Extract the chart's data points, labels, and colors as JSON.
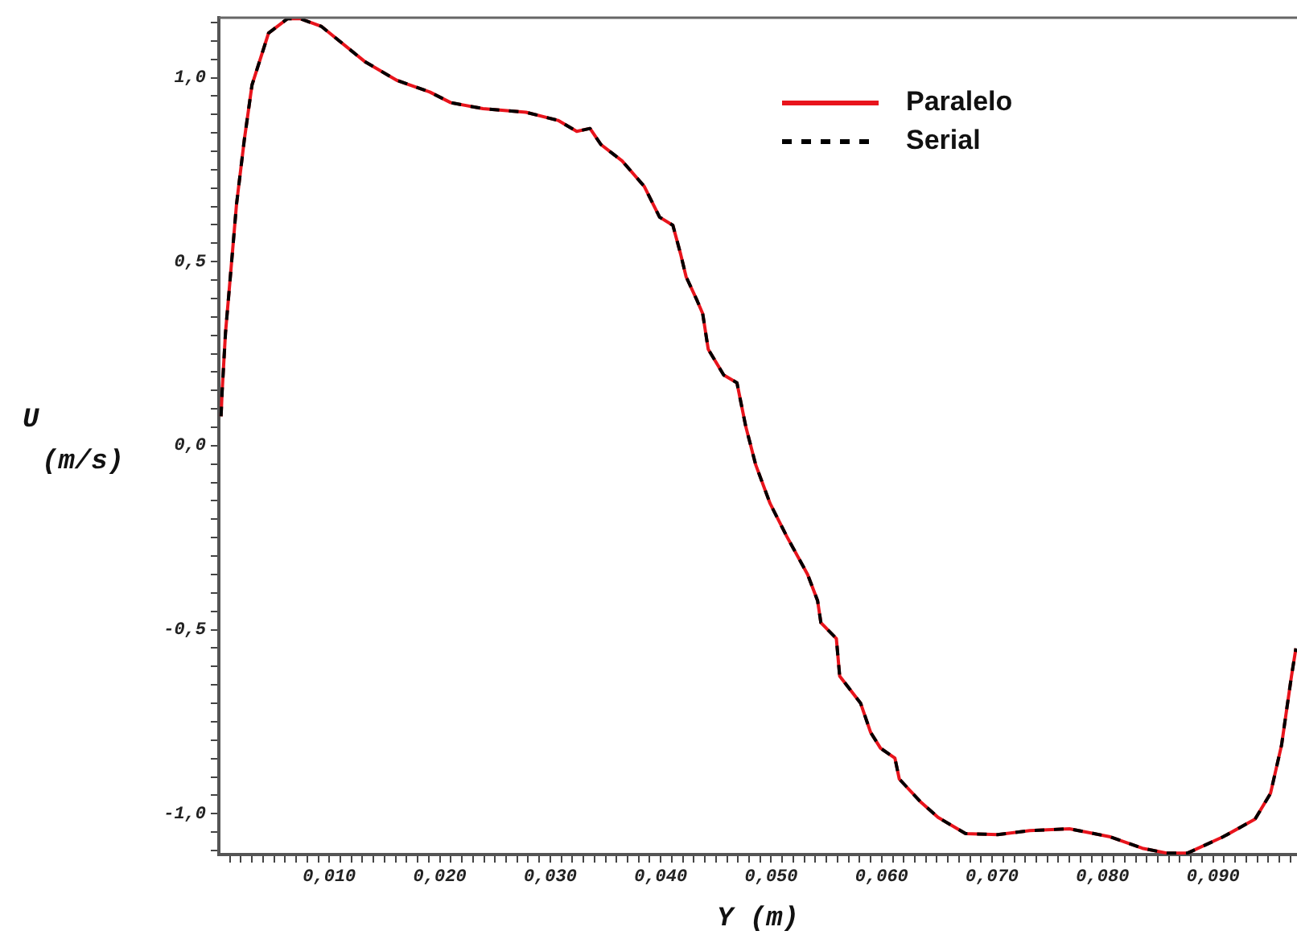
{
  "chart_data": {
    "type": "line",
    "xlabel": "Y (m)",
    "ylabel": "U (m/s)",
    "marker": "none",
    "legend": "top right",
    "grid": false,
    "x": [
      0.0002,
      0.0003,
      0.0006,
      0.0011,
      0.0016,
      0.0023,
      0.003,
      0.0045,
      0.0062,
      0.0074,
      0.0093,
      0.0132,
      0.0161,
      0.0191,
      0.021,
      0.0239,
      0.0278,
      0.0307,
      0.0324,
      0.0336,
      0.0346,
      0.0365,
      0.0385,
      0.0399,
      0.0411,
      0.0418,
      0.0423,
      0.0433,
      0.0438,
      0.0443,
      0.0457,
      0.0469,
      0.0477,
      0.0486,
      0.0499,
      0.0514,
      0.0533,
      0.0542,
      0.0545,
      0.0559,
      0.0562,
      0.0581,
      0.059,
      0.0599,
      0.0612,
      0.0616,
      0.0635,
      0.0651,
      0.0676,
      0.0705,
      0.0734,
      0.077,
      0.0807,
      0.0836,
      0.0858,
      0.0877,
      0.0909,
      0.0938,
      0.0952,
      0.0962,
      0.0971,
      0.0975
    ],
    "series": [
      {
        "name": "Paralelo",
        "color": "#e8141c",
        "line_style": "solid",
        "values": [
          0.08,
          0.149,
          0.306,
          0.48,
          0.656,
          0.83,
          0.98,
          1.121,
          1.16,
          1.16,
          1.139,
          1.044,
          0.993,
          0.961,
          0.932,
          0.916,
          0.906,
          0.884,
          0.854,
          0.862,
          0.818,
          0.774,
          0.705,
          0.621,
          0.599,
          0.521,
          0.459,
          0.394,
          0.359,
          0.262,
          0.192,
          0.171,
          0.052,
          -0.052,
          -0.157,
          -0.246,
          -0.35,
          -0.421,
          -0.481,
          -0.524,
          -0.626,
          -0.7,
          -0.779,
          -0.822,
          -0.849,
          -0.906,
          -0.967,
          -1.01,
          -1.054,
          -1.057,
          -1.046,
          -1.041,
          -1.063,
          -1.094,
          -1.107,
          -1.107,
          -1.063,
          -1.015,
          -0.945,
          -0.814,
          -0.626,
          -0.551
        ]
      },
      {
        "name": "Serial",
        "color": "#000000",
        "line_style": "dashed",
        "values": [
          0.08,
          0.149,
          0.306,
          0.48,
          0.656,
          0.83,
          0.98,
          1.121,
          1.16,
          1.16,
          1.139,
          1.044,
          0.993,
          0.961,
          0.932,
          0.916,
          0.906,
          0.884,
          0.854,
          0.862,
          0.818,
          0.774,
          0.705,
          0.621,
          0.599,
          0.521,
          0.459,
          0.394,
          0.359,
          0.262,
          0.192,
          0.171,
          0.052,
          -0.052,
          -0.157,
          -0.246,
          -0.35,
          -0.421,
          -0.481,
          -0.524,
          -0.626,
          -0.7,
          -0.779,
          -0.822,
          -0.849,
          -0.906,
          -0.967,
          -1.01,
          -1.054,
          -1.057,
          -1.046,
          -1.041,
          -1.063,
          -1.094,
          -1.107,
          -1.107,
          -1.063,
          -1.015,
          -0.945,
          -0.814,
          -0.626,
          -0.551
        ]
      }
    ],
    "xlim": [
      0,
      0.0976
    ],
    "ylim": [
      -1.111,
      1.163
    ],
    "xticks": [
      {
        "value": 0.001,
        "label": null
      },
      {
        "value": 0.002,
        "label": null
      },
      {
        "value": 0.003,
        "label": null
      },
      {
        "value": 0.004,
        "label": null
      },
      {
        "value": 0.005,
        "label": null
      },
      {
        "value": 0.006,
        "label": null
      },
      {
        "value": 0.007,
        "label": null
      },
      {
        "value": 0.008,
        "label": null
      },
      {
        "value": 0.009,
        "label": null
      },
      {
        "value": 0.01,
        "label": "0,010"
      },
      {
        "value": 0.011,
        "label": null
      },
      {
        "value": 0.012,
        "label": null
      },
      {
        "value": 0.013,
        "label": null
      },
      {
        "value": 0.014,
        "label": null
      },
      {
        "value": 0.015,
        "label": null
      },
      {
        "value": 0.016,
        "label": null
      },
      {
        "value": 0.017,
        "label": null
      },
      {
        "value": 0.018,
        "label": null
      },
      {
        "value": 0.019,
        "label": null
      },
      {
        "value": 0.02,
        "label": "0,020"
      },
      {
        "value": 0.021,
        "label": null
      },
      {
        "value": 0.022,
        "label": null
      },
      {
        "value": 0.023,
        "label": null
      },
      {
        "value": 0.024,
        "label": null
      },
      {
        "value": 0.025,
        "label": null
      },
      {
        "value": 0.026,
        "label": null
      },
      {
        "value": 0.027,
        "label": null
      },
      {
        "value": 0.028,
        "label": null
      },
      {
        "value": 0.029,
        "label": null
      },
      {
        "value": 0.03,
        "label": "0,030"
      },
      {
        "value": 0.031,
        "label": null
      },
      {
        "value": 0.032,
        "label": null
      },
      {
        "value": 0.033,
        "label": null
      },
      {
        "value": 0.034,
        "label": null
      },
      {
        "value": 0.035,
        "label": null
      },
      {
        "value": 0.036,
        "label": null
      },
      {
        "value": 0.037,
        "label": null
      },
      {
        "value": 0.038,
        "label": null
      },
      {
        "value": 0.039,
        "label": null
      },
      {
        "value": 0.04,
        "label": "0,040"
      },
      {
        "value": 0.041,
        "label": null
      },
      {
        "value": 0.042,
        "label": null
      },
      {
        "value": 0.043,
        "label": null
      },
      {
        "value": 0.044,
        "label": null
      },
      {
        "value": 0.045,
        "label": null
      },
      {
        "value": 0.046,
        "label": null
      },
      {
        "value": 0.047,
        "label": null
      },
      {
        "value": 0.048,
        "label": null
      },
      {
        "value": 0.049,
        "label": null
      },
      {
        "value": 0.05,
        "label": "0,050"
      },
      {
        "value": 0.051,
        "label": null
      },
      {
        "value": 0.052,
        "label": null
      },
      {
        "value": 0.053,
        "label": null
      },
      {
        "value": 0.054,
        "label": null
      },
      {
        "value": 0.055,
        "label": null
      },
      {
        "value": 0.056,
        "label": null
      },
      {
        "value": 0.057,
        "label": null
      },
      {
        "value": 0.058,
        "label": null
      },
      {
        "value": 0.059,
        "label": null
      },
      {
        "value": 0.06,
        "label": "0,060"
      },
      {
        "value": 0.061,
        "label": null
      },
      {
        "value": 0.062,
        "label": null
      },
      {
        "value": 0.063,
        "label": null
      },
      {
        "value": 0.064,
        "label": null
      },
      {
        "value": 0.065,
        "label": null
      },
      {
        "value": 0.066,
        "label": null
      },
      {
        "value": 0.067,
        "label": null
      },
      {
        "value": 0.068,
        "label": null
      },
      {
        "value": 0.069,
        "label": null
      },
      {
        "value": 0.07,
        "label": "0,070"
      },
      {
        "value": 0.071,
        "label": null
      },
      {
        "value": 0.072,
        "label": null
      },
      {
        "value": 0.073,
        "label": null
      },
      {
        "value": 0.074,
        "label": null
      },
      {
        "value": 0.075,
        "label": null
      },
      {
        "value": 0.076,
        "label": null
      },
      {
        "value": 0.077,
        "label": null
      },
      {
        "value": 0.078,
        "label": null
      },
      {
        "value": 0.079,
        "label": null
      },
      {
        "value": 0.08,
        "label": "0,080"
      },
      {
        "value": 0.081,
        "label": null
      },
      {
        "value": 0.082,
        "label": null
      },
      {
        "value": 0.083,
        "label": null
      },
      {
        "value": 0.084,
        "label": null
      },
      {
        "value": 0.085,
        "label": null
      },
      {
        "value": 0.086,
        "label": null
      },
      {
        "value": 0.087,
        "label": null
      },
      {
        "value": 0.088,
        "label": null
      },
      {
        "value": 0.089,
        "label": null
      },
      {
        "value": 0.09,
        "label": "0,090"
      },
      {
        "value": 0.091,
        "label": null
      },
      {
        "value": 0.092,
        "label": null
      },
      {
        "value": 0.093,
        "label": null
      },
      {
        "value": 0.094,
        "label": null
      },
      {
        "value": 0.095,
        "label": null
      },
      {
        "value": 0.096,
        "label": null
      },
      {
        "value": 0.097,
        "label": null
      }
    ],
    "yticks": [
      {
        "value": -1.1,
        "label": null
      },
      {
        "value": -1.05,
        "label": null
      },
      {
        "value": -1,
        "label": "-1,0"
      },
      {
        "value": -0.95,
        "label": null
      },
      {
        "value": -0.9,
        "label": null
      },
      {
        "value": -0.85,
        "label": null
      },
      {
        "value": -0.8,
        "label": null
      },
      {
        "value": -0.75,
        "label": null
      },
      {
        "value": -0.7,
        "label": null
      },
      {
        "value": -0.65,
        "label": null
      },
      {
        "value": -0.6,
        "label": null
      },
      {
        "value": -0.55,
        "label": null
      },
      {
        "value": -0.5,
        "label": "-0,5"
      },
      {
        "value": -0.45,
        "label": null
      },
      {
        "value": -0.4,
        "label": null
      },
      {
        "value": -0.35,
        "label": null
      },
      {
        "value": -0.3,
        "label": null
      },
      {
        "value": -0.25,
        "label": null
      },
      {
        "value": -0.2,
        "label": null
      },
      {
        "value": -0.15,
        "label": null
      },
      {
        "value": -0.1,
        "label": null
      },
      {
        "value": -0.05,
        "label": null
      },
      {
        "value": 0,
        "label": "0,0"
      },
      {
        "value": 0.05,
        "label": null
      },
      {
        "value": 0.1,
        "label": null
      },
      {
        "value": 0.15,
        "label": null
      },
      {
        "value": 0.2,
        "label": null
      },
      {
        "value": 0.25,
        "label": null
      },
      {
        "value": 0.3,
        "label": null
      },
      {
        "value": 0.35,
        "label": null
      },
      {
        "value": 0.4,
        "label": null
      },
      {
        "value": 0.45,
        "label": null
      },
      {
        "value": 0.5,
        "label": "0,5"
      },
      {
        "value": 0.55,
        "label": null
      },
      {
        "value": 0.6,
        "label": null
      },
      {
        "value": 0.65,
        "label": null
      },
      {
        "value": 0.7,
        "label": null
      },
      {
        "value": 0.75,
        "label": null
      },
      {
        "value": 0.8,
        "label": null
      },
      {
        "value": 0.85,
        "label": null
      },
      {
        "value": 0.9,
        "label": null
      },
      {
        "value": 0.95,
        "label": null
      },
      {
        "value": 1,
        "label": "1,0"
      },
      {
        "value": 1.05,
        "label": null
      },
      {
        "value": 1.1,
        "label": null
      },
      {
        "value": 1.15,
        "label": null
      }
    ]
  }
}
